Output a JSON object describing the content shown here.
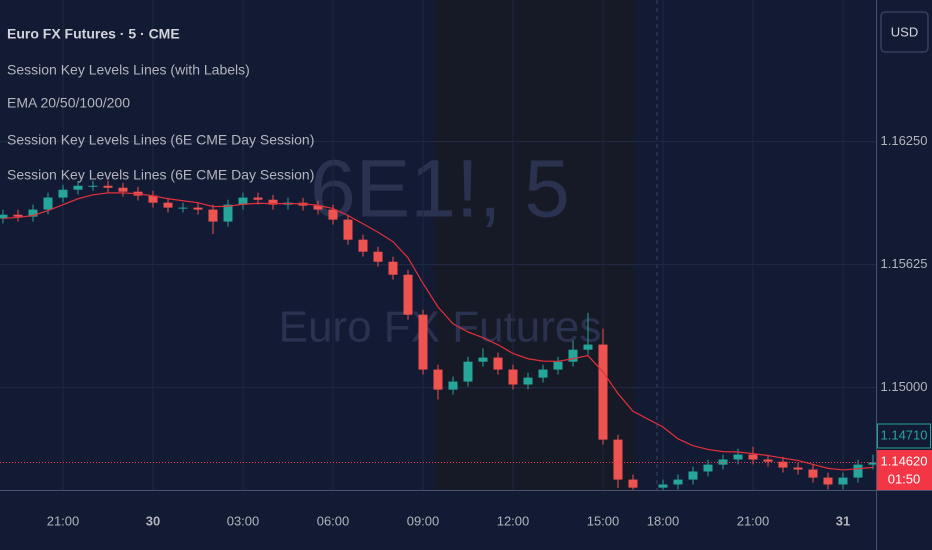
{
  "chart_data": {
    "type": "candlestick",
    "title": "Euro FX Futures · 5 · CME",
    "indicators": [
      "Session Key Levels Lines (with Labels)",
      "EMA 20/50/100/200",
      "Session Key Levels Lines (6E CME Day Session)",
      "Session Key Levels Lines (6E CME Day Session)"
    ],
    "watermark": [
      "6E1!, 5",
      "Euro FX Futures"
    ],
    "currency": "USD",
    "up_color": "#26a69a",
    "down_color": "#ef5350",
    "x": [
      -4,
      -3,
      -2,
      -1,
      0,
      1,
      2,
      3,
      4,
      5,
      6,
      7,
      8,
      9,
      10,
      11,
      12,
      13,
      14,
      15,
      16,
      17,
      18,
      19,
      20,
      21,
      22,
      23,
      24,
      25,
      26,
      27,
      28,
      29,
      30,
      31,
      32,
      33,
      34,
      35,
      36,
      37,
      38,
      40,
      41,
      42,
      43,
      44,
      45,
      46,
      47,
      48,
      49,
      50,
      51,
      52,
      53,
      54
    ],
    "open": [
      1.1586,
      1.15879,
      1.15869,
      1.15905,
      1.15966,
      1.16006,
      1.16026,
      1.16026,
      1.16016,
      1.15996,
      1.15976,
      1.1594,
      1.15915,
      1.15915,
      1.15905,
      1.15844,
      1.1593,
      1.15966,
      1.15955,
      1.1593,
      1.1594,
      1.15925,
      1.15905,
      1.15854,
      1.15752,
      1.15691,
      1.1564,
      1.15574,
      1.15371,
      1.15092,
      1.1499,
      1.15031,
      1.15132,
      1.15153,
      1.15092,
      1.15016,
      1.15051,
      1.15092,
      1.15132,
      1.15193,
      1.15219,
      1.14736,
      1.14533,
      1.14492,
      1.14508,
      1.14533,
      1.14574,
      1.14609,
      1.14635,
      1.1466,
      1.14635,
      1.14624,
      1.14594,
      1.14584,
      1.14543,
      1.14508,
      1.14543,
      1.14609
    ],
    "high": [
      1.15904,
      1.15904,
      1.1593,
      1.15991,
      1.16031,
      1.16051,
      1.16051,
      1.16051,
      1.16041,
      1.16021,
      1.16001,
      1.15965,
      1.1594,
      1.1594,
      1.1593,
      1.15955,
      1.15991,
      1.15991,
      1.1598,
      1.15965,
      1.15965,
      1.1595,
      1.1593,
      1.15879,
      1.15777,
      1.15716,
      1.15665,
      1.15599,
      1.15396,
      1.15117,
      1.15056,
      1.15157,
      1.152,
      1.15178,
      1.15117,
      1.15076,
      1.15117,
      1.15157,
      1.1524,
      1.1538,
      1.153,
      1.14761,
      1.14558,
      1.14533,
      1.14558,
      1.14599,
      1.14634,
      1.1466,
      1.1469,
      1.147,
      1.1466,
      1.14649,
      1.14619,
      1.14609,
      1.14568,
      1.14568,
      1.14634,
      1.1466
    ],
    "low": [
      1.15835,
      1.15844,
      1.15844,
      1.1588,
      1.15941,
      1.15981,
      1.16001,
      1.15991,
      1.15971,
      1.15951,
      1.15915,
      1.1589,
      1.1589,
      1.1588,
      1.1578,
      1.15819,
      1.15905,
      1.1593,
      1.15905,
      1.15905,
      1.159,
      1.1588,
      1.15829,
      1.15727,
      1.15666,
      1.15615,
      1.15549,
      1.15346,
      1.15067,
      1.1494,
      1.14965,
      1.15006,
      1.15107,
      1.15067,
      1.14991,
      1.14991,
      1.15026,
      1.15067,
      1.15107,
      1.15168,
      1.14711,
      1.1449,
      1.14482,
      1.14482,
      1.14483,
      1.14508,
      1.14549,
      1.14584,
      1.1461,
      1.1461,
      1.14599,
      1.14569,
      1.14559,
      1.14518,
      1.14483,
      1.14483,
      1.14518,
      1.14584
    ],
    "close": [
      1.15879,
      1.15869,
      1.15905,
      1.15966,
      1.16006,
      1.16026,
      1.16026,
      1.16016,
      1.15996,
      1.15976,
      1.1594,
      1.15915,
      1.15915,
      1.15905,
      1.15844,
      1.1593,
      1.15966,
      1.15955,
      1.1593,
      1.1594,
      1.15925,
      1.15905,
      1.15854,
      1.15752,
      1.15691,
      1.1564,
      1.15574,
      1.15371,
      1.15092,
      1.1499,
      1.15031,
      1.15132,
      1.15153,
      1.15092,
      1.15016,
      1.15051,
      1.15092,
      1.15132,
      1.15193,
      1.15219,
      1.14736,
      1.14533,
      1.14492,
      1.14508,
      1.14533,
      1.14574,
      1.14609,
      1.14635,
      1.1466,
      1.14635,
      1.14624,
      1.14594,
      1.14584,
      1.14543,
      1.14508,
      1.14543,
      1.14609,
      1.1462
    ],
    "ema": {
      "color": "#e0313c",
      "values": [
        1.1586,
        1.15865,
        1.15875,
        1.159,
        1.1593,
        1.1596,
        1.1598,
        1.1599,
        1.1599,
        1.15985,
        1.15975,
        1.1596,
        1.1595,
        1.1594,
        1.1592,
        1.15922,
        1.15932,
        1.15937,
        1.15935,
        1.15936,
        1.15934,
        1.15927,
        1.1591,
        1.15875,
        1.15833,
        1.1579,
        1.15742,
        1.1566,
        1.1553,
        1.1541,
        1.15325,
        1.15283,
        1.15254,
        1.15218,
        1.15174,
        1.15147,
        1.15135,
        1.15134,
        1.15147,
        1.15163,
        1.1508,
        1.1497,
        1.1488,
        1.148,
        1.1474,
        1.14705,
        1.14686,
        1.14675,
        1.14673,
        1.14665,
        1.14655,
        1.14642,
        1.1463,
        1.1461,
        1.1459,
        1.14582,
        1.14588,
        1.14595
      ]
    },
    "xlim": [
      -4.2,
      54.2
    ],
    "xticks": [
      {
        "value": 0,
        "label": "21:00"
      },
      {
        "value": 6,
        "label": "30"
      },
      {
        "value": 12,
        "label": "03:00"
      },
      {
        "value": 18,
        "label": "06:00"
      },
      {
        "value": 24,
        "label": "09:00"
      },
      {
        "value": 30,
        "label": "12:00"
      },
      {
        "value": 36,
        "label": "15:00"
      },
      {
        "value": 40,
        "label": "18:00"
      },
      {
        "value": 46,
        "label": "21:00"
      },
      {
        "value": 52,
        "label": "31"
      }
    ],
    "ylim": [
      1.1448,
      1.1697
    ],
    "yticks": [
      {
        "value": 1.15,
        "label": "1.15000"
      },
      {
        "value": 1.15625,
        "label": "1.15625"
      },
      {
        "value": 1.1625,
        "label": "1.16250"
      }
    ],
    "grid": true,
    "price_tags": [
      {
        "value": 1.1471,
        "label": "1.14710",
        "color": "#26a69a"
      }
    ],
    "last_price": {
      "value": 1.1462,
      "label": "1.14620",
      "countdown": "01:50",
      "color": "#f23645"
    }
  }
}
